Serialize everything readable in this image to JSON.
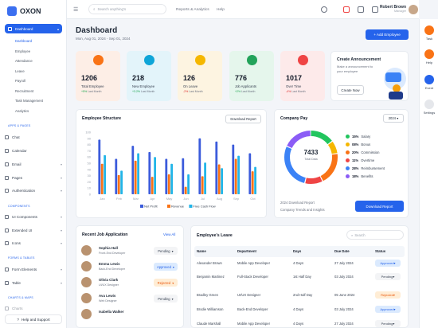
{
  "app": {
    "name": "OXON"
  },
  "sidebar": {
    "items": [
      {
        "label": "Dashboard"
      },
      {
        "label": "Chat"
      },
      {
        "label": "Calendar"
      },
      {
        "label": "Email"
      },
      {
        "label": "Pages"
      },
      {
        "label": "Authentication"
      },
      {
        "label": "UI Components"
      },
      {
        "label": "Extended UI"
      },
      {
        "label": "Icons"
      },
      {
        "label": "Form Elements"
      },
      {
        "label": "Table"
      },
      {
        "label": "Charts"
      }
    ],
    "dashboard_sub": [
      "Dashboard",
      "Employee",
      "Attendance",
      "Leave",
      "Payroll",
      "Recruitment",
      "Task Management",
      "Analytics"
    ],
    "sections": [
      "APPS & PAGES",
      "COMPONENTS",
      "FORMS & TABLES",
      "CHARTS & MAPS"
    ],
    "help": "Help and Support"
  },
  "topbar": {
    "search_placeholder": "Search anything's",
    "links": [
      "Reports & Analytics",
      "Help"
    ],
    "user_name": "Robert Brown",
    "user_role": "Manager"
  },
  "rightbar": [
    "Task",
    "Help",
    "Event",
    "Settings"
  ],
  "header": {
    "title": "Dashboard",
    "date_range": "Mon, Aug 01, 2024 - Sep 01, 2024",
    "add_button": "+ Add Employee"
  },
  "stats": [
    {
      "value": "1206",
      "label": "Total Employee",
      "trend": "+5%",
      "trend_suffix": " Last Month",
      "bg": "#fdeee6",
      "icon": "#f97316",
      "trend_color": "#16a34a"
    },
    {
      "value": "218",
      "label": "New Employee",
      "trend": "+3.2%",
      "trend_suffix": " Last Month",
      "bg": "#e3f4fa",
      "icon": "#0ea5d8",
      "trend_color": "#16a34a"
    },
    {
      "value": "126",
      "label": "On Leave",
      "trend": "-2%",
      "trend_suffix": " Last Month",
      "bg": "#fdf4e1",
      "icon": "#f5b700",
      "trend_color": "#dc2626"
    },
    {
      "value": "776",
      "label": "Job Applicants",
      "trend": "+2%",
      "trend_suffix": " Last Month",
      "bg": "#e5f6ec",
      "icon": "#22a35a",
      "trend_color": "#16a34a"
    },
    {
      "value": "1017",
      "label": "Over Time",
      "trend": "-4%",
      "trend_suffix": " Last Month",
      "bg": "#fdeaea",
      "icon": "#ef4444",
      "trend_color": "#dc2626"
    }
  ],
  "announcement": {
    "title": "Create Announcement",
    "subtitle": "Make a announcement to your employee",
    "button": "Create Now"
  },
  "employee_structure": {
    "title": "Employee Structure",
    "button": "Download Report"
  },
  "chart_data": {
    "type": "bar",
    "categories": [
      "Jan",
      "Feb",
      "Mar",
      "Apr",
      "May",
      "Jun",
      "Jul",
      "Aug",
      "Sep",
      "Oct"
    ],
    "series": [
      {
        "name": "Net Profit",
        "color": "#3b5bdb",
        "values": [
          88,
          57,
          78,
          68,
          57,
          58,
          90,
          85,
          80,
          66
        ]
      },
      {
        "name": "Revenue",
        "color": "#f97316",
        "values": [
          49,
          31,
          54,
          28,
          32,
          12,
          29,
          48,
          57,
          37
        ]
      },
      {
        "name": "Free Cash Flow",
        "color": "#22b5e8",
        "values": [
          63,
          38,
          66,
          60,
          49,
          32,
          51,
          42,
          62,
          44
        ]
      }
    ],
    "ylim": [
      0,
      100
    ],
    "yticks": [
      "100",
      "90",
      "80",
      "70",
      "60",
      "50",
      "40",
      "30",
      "20",
      "10",
      "0"
    ]
  },
  "company_pay": {
    "title": "Company Pay",
    "period": "2024",
    "center_value": "7433",
    "center_label": "Total Data",
    "segments": [
      {
        "pct": "15%",
        "label": "Salary",
        "color": "#22c55e",
        "v": 15
      },
      {
        "pct": "08%",
        "label": "Bonus",
        "color": "#f5b700",
        "v": 8
      },
      {
        "pct": "20%",
        "label": "Commission",
        "color": "#f97316",
        "v": 20
      },
      {
        "pct": "11%",
        "label": "Overtime",
        "color": "#ef4444",
        "v": 11
      },
      {
        "pct": "28%",
        "label": "Reimbursement",
        "color": "#3b82f6",
        "v": 28
      },
      {
        "pct": "18%",
        "label": "Benefits",
        "color": "#8b5cf6",
        "v": 18
      }
    ],
    "report_title": "2024 Download Report",
    "report_sub": "Company Trends and Insights",
    "download": "Download Report"
  },
  "jobs": {
    "title": "Recent Job Application",
    "view_all": "View All",
    "rows": [
      {
        "name": "Sophia Hall",
        "role": "Front-End Developer",
        "status": "Pending",
        "bg": "#f3f4f6",
        "fg": "#374151"
      },
      {
        "name": "Emma Lewis",
        "role": "Back-End Developer",
        "status": "Approved",
        "bg": "#dbeafe",
        "fg": "#2563eb"
      },
      {
        "name": "Olivia Clark",
        "role": "UI/UX Designer",
        "status": "Rejected",
        "bg": "#ffedd5",
        "fg": "#ea580c"
      },
      {
        "name": "Ava Lewis",
        "role": "Web Designer",
        "status": "Pending",
        "bg": "#f3f4f6",
        "fg": "#374151"
      },
      {
        "name": "Isabella Walker",
        "role": "",
        "status": "",
        "bg": "#fff",
        "fg": "#374151"
      }
    ]
  },
  "leaves": {
    "title": "Employee's Leave",
    "search": "Search",
    "headers": [
      "Name",
      "Department",
      "Days",
      "Due Date",
      "Status"
    ],
    "rows": [
      {
        "name": "Alexander Brown",
        "dept": "Mobile App Developer",
        "days": "4 Days",
        "due": "27 July 2024",
        "status": "Approved",
        "bg": "#dbeafe",
        "fg": "#2563eb"
      },
      {
        "name": "Benjamin Martinez",
        "dept": "Full-Stack Developer",
        "days": "1st Half Day",
        "due": "03 July 2024",
        "status": "Pending",
        "bg": "#f3f4f6",
        "fg": "#374151"
      },
      {
        "name": "Bradley Green",
        "dept": "UI/UX Designer",
        "days": "2nd Half Day",
        "due": "05 June 2024",
        "status": "Rejected",
        "bg": "#ffedd5",
        "fg": "#ea580c"
      },
      {
        "name": "Brodie Williamson",
        "dept": "Back-End Developer",
        "days": "4 Days",
        "due": "03 July 2024",
        "status": "Approved",
        "bg": "#dbeafe",
        "fg": "#2563eb"
      },
      {
        "name": "Claude Marshall",
        "dept": "Mobile App Developer",
        "days": "4 Days",
        "due": "27 July 2024",
        "status": "Pending",
        "bg": "#f3f4f6",
        "fg": "#374151"
      }
    ]
  }
}
